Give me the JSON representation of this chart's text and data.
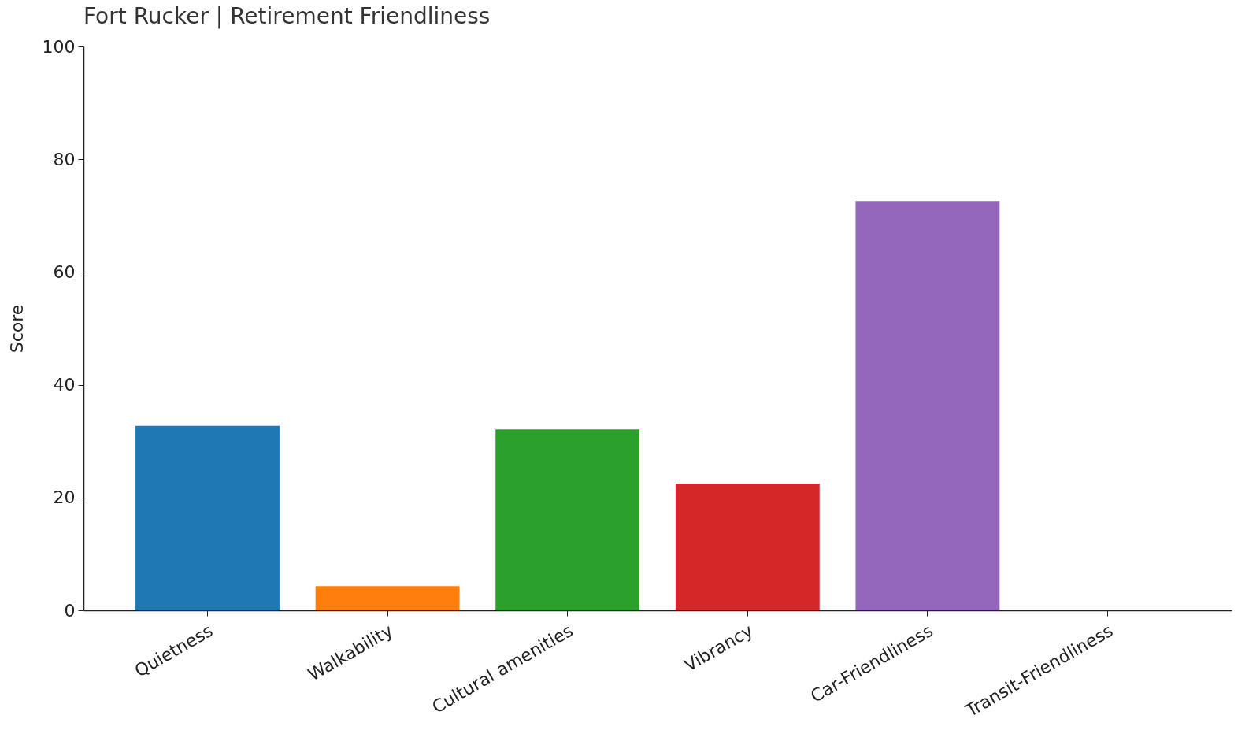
{
  "chart_data": {
    "type": "bar",
    "title": "Fort Rucker | Retirement Friendliness",
    "ylabel": "Score",
    "categories": [
      "Quietness",
      "Walkability",
      "Cultural amenities",
      "Vibrancy",
      "Car-Friendliness",
      "Transit-Friendliness"
    ],
    "values": [
      32.7,
      4.3,
      32.1,
      22.5,
      72.6,
      0
    ],
    "colors": [
      "#1f77b4",
      "#ff7f0e",
      "#2ca02c",
      "#d62728",
      "#9467bd",
      "#8c564b"
    ],
    "ylim": [
      0,
      100
    ],
    "yticks": [
      0,
      20,
      40,
      60,
      80,
      100
    ],
    "grid": false,
    "legend": false
  }
}
